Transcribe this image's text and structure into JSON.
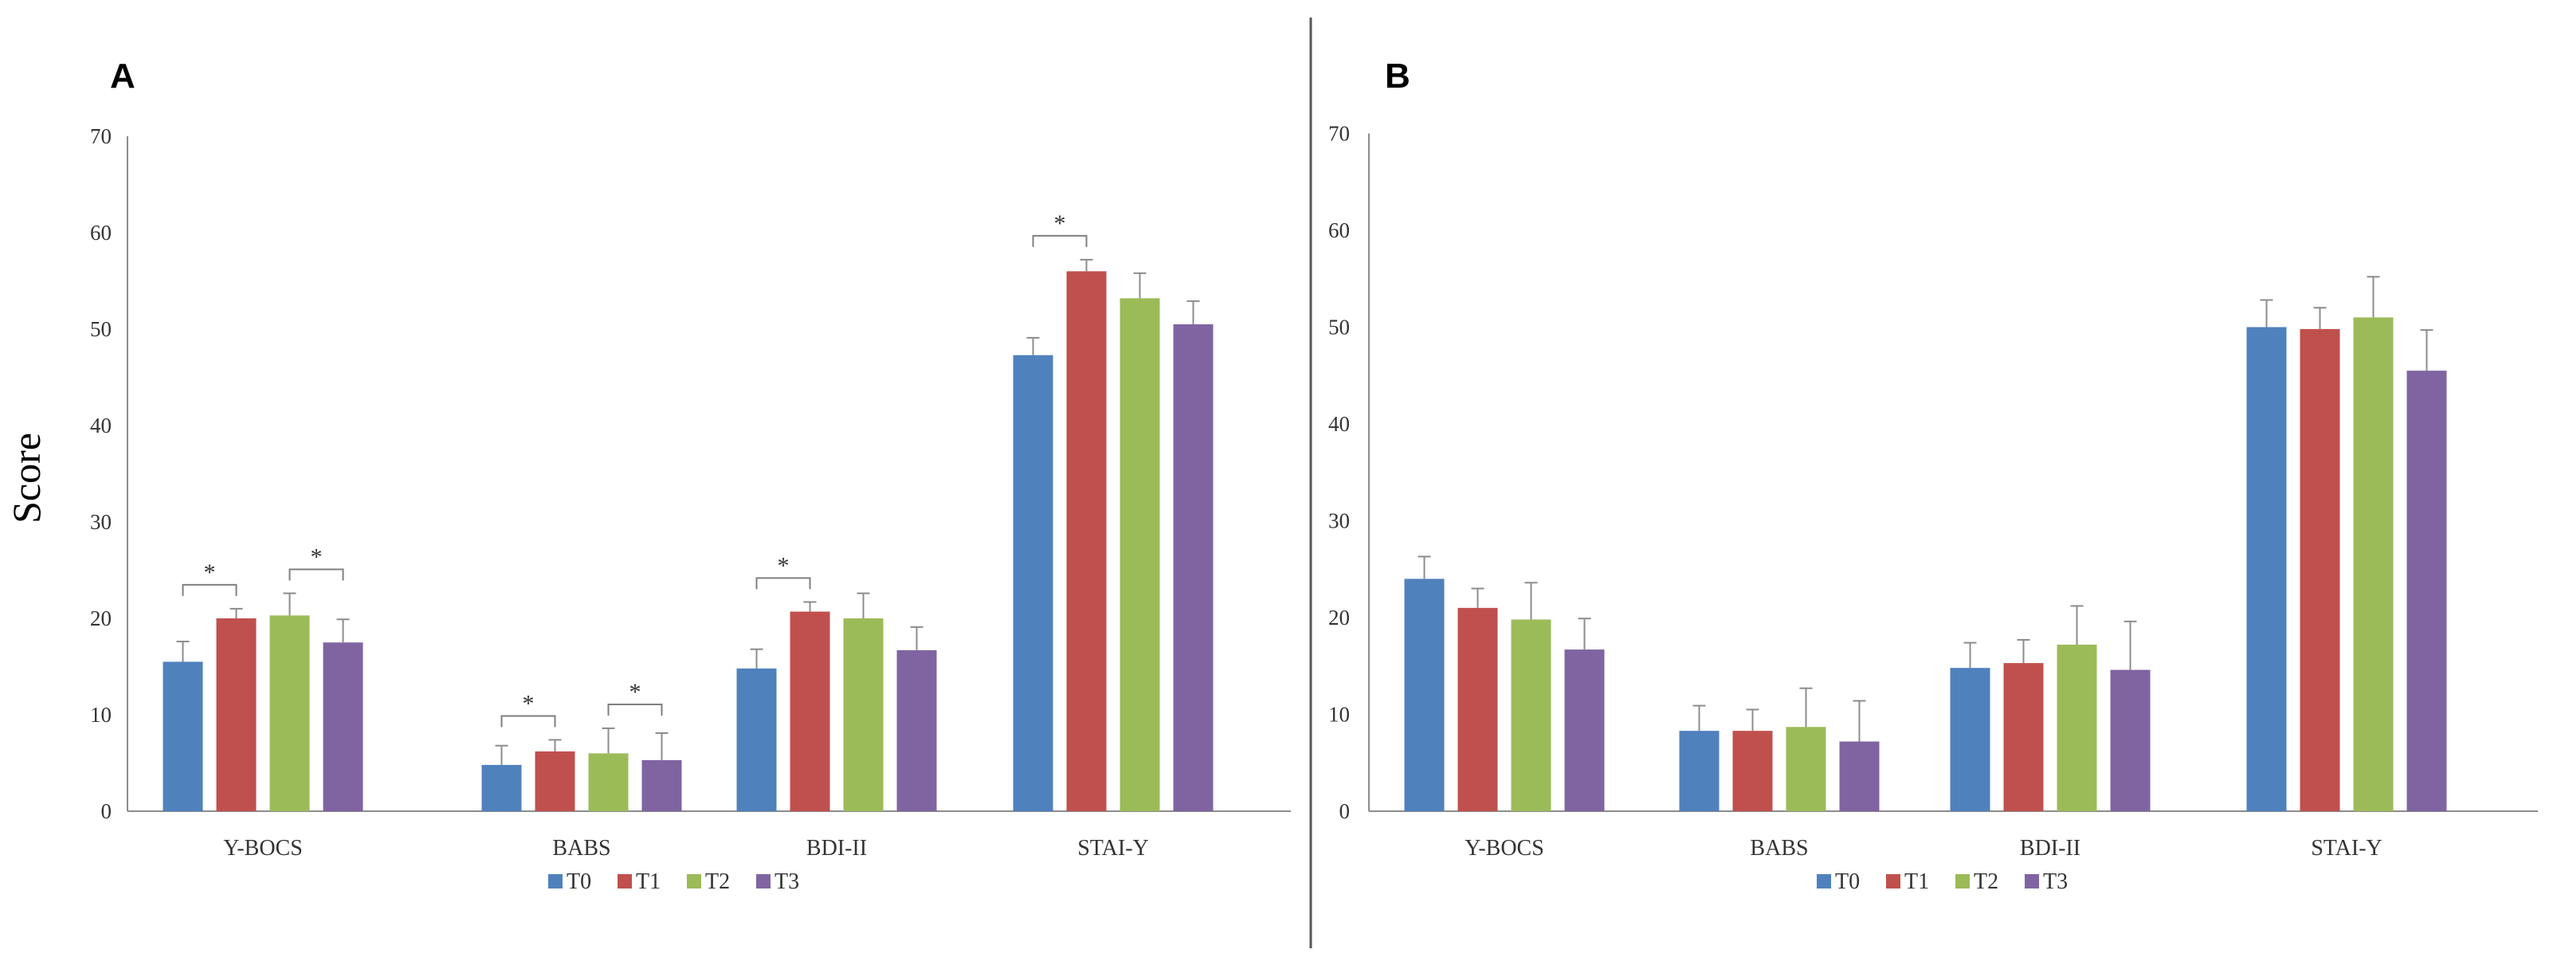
{
  "chart_data": [
    {
      "panel": "A",
      "type": "bar",
      "ylabel": "Score",
      "ylim": [
        0,
        70
      ],
      "yticks": [
        0,
        10,
        20,
        30,
        40,
        50,
        60,
        70
      ],
      "categories": [
        "Y-BOCS",
        "BABS",
        "BDI-II",
        "STAI-Y"
      ],
      "series": [
        {
          "name": "T0",
          "values": [
            15.5,
            4.8,
            14.8,
            47.3
          ],
          "errors": [
            2.1,
            2.0,
            2.0,
            1.8
          ]
        },
        {
          "name": "T1",
          "values": [
            20.0,
            6.2,
            20.7,
            56.0
          ],
          "errors": [
            1.0,
            1.2,
            1.0,
            1.2
          ]
        },
        {
          "name": "T2",
          "values": [
            20.3,
            6.0,
            20.0,
            53.2
          ],
          "errors": [
            2.3,
            2.6,
            2.6,
            2.6
          ]
        },
        {
          "name": "T3",
          "values": [
            17.5,
            5.3,
            16.7,
            50.5
          ],
          "errors": [
            2.4,
            2.8,
            2.4,
            2.4
          ]
        }
      ],
      "significance": [
        {
          "category": 0,
          "from": 0,
          "to": 1,
          "label": "*"
        },
        {
          "category": 0,
          "from": 2,
          "to": 3,
          "label": "*"
        },
        {
          "category": 1,
          "from": 0,
          "to": 1,
          "label": "*"
        },
        {
          "category": 1,
          "from": 2,
          "to": 3,
          "label": "*"
        },
        {
          "category": 2,
          "from": 0,
          "to": 1,
          "label": "*"
        },
        {
          "category": 3,
          "from": 0,
          "to": 1,
          "label": "*"
        }
      ],
      "legend_position": "bottom-center"
    },
    {
      "panel": "B",
      "type": "bar",
      "ylabel": "",
      "ylim": [
        0,
        70
      ],
      "yticks": [
        0,
        10,
        20,
        30,
        40,
        50,
        60,
        70
      ],
      "categories": [
        "Y-BOCS",
        "BABS",
        "BDI-II",
        "STAI-Y"
      ],
      "series": [
        {
          "name": "T0",
          "values": [
            24.0,
            8.3,
            14.8,
            50.0
          ],
          "errors": [
            2.3,
            2.6,
            2.6,
            2.8
          ]
        },
        {
          "name": "T1",
          "values": [
            21.0,
            8.3,
            15.3,
            49.8
          ],
          "errors": [
            2.0,
            2.2,
            2.4,
            2.2
          ]
        },
        {
          "name": "T2",
          "values": [
            19.8,
            8.7,
            17.2,
            51.0
          ],
          "errors": [
            3.8,
            4.0,
            4.0,
            4.2
          ]
        },
        {
          "name": "T3",
          "values": [
            16.7,
            7.2,
            14.6,
            45.5
          ],
          "errors": [
            3.2,
            4.2,
            5.0,
            4.2
          ]
        }
      ],
      "significance": [],
      "legend_position": "bottom-center"
    }
  ],
  "colors": {
    "T0": "#4f81bd",
    "T1": "#c0504d",
    "T2": "#9bbb59",
    "T3": "#8064a2",
    "axis": "#8c8c8c",
    "divider": "#555555"
  }
}
